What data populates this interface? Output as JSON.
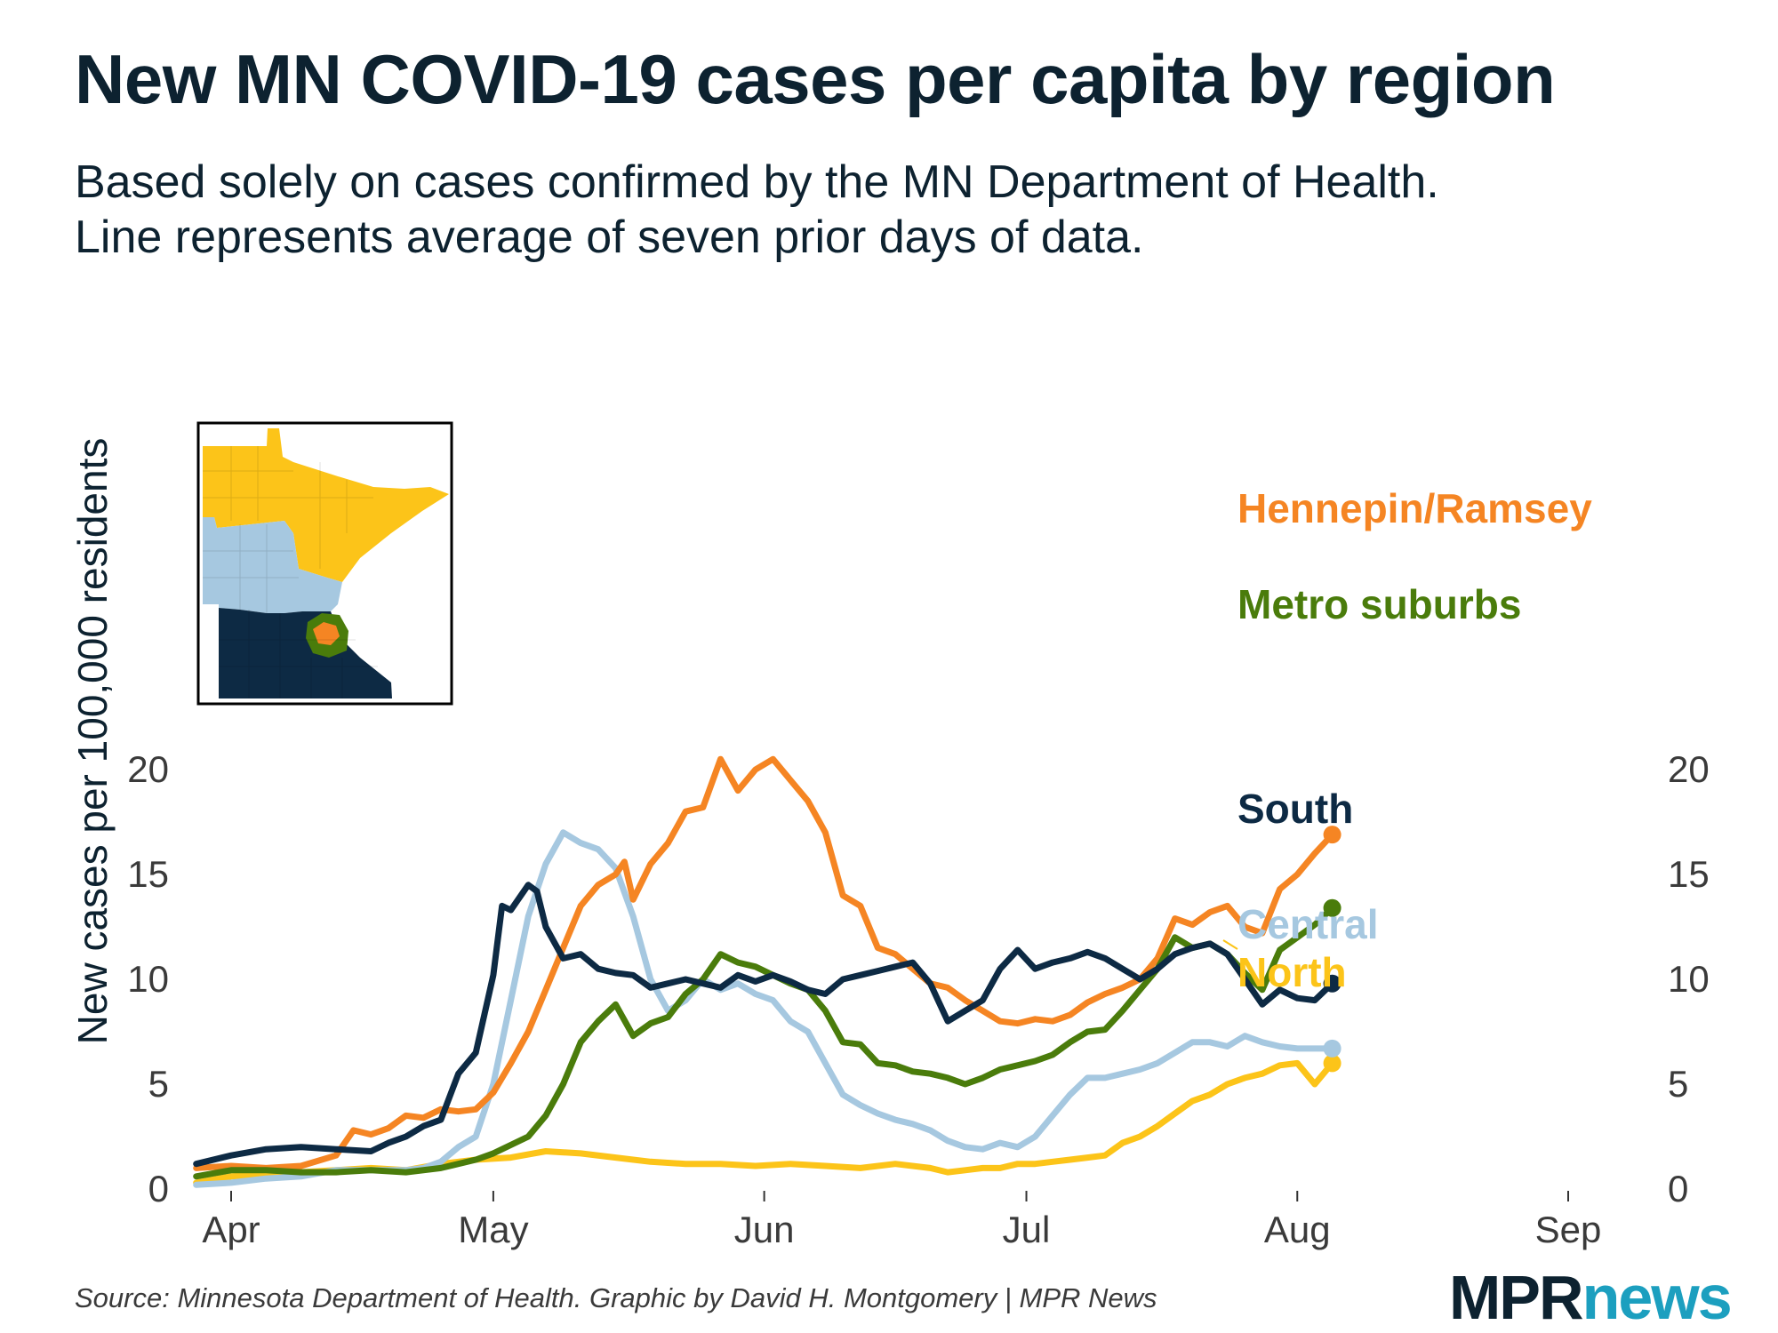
{
  "header": {
    "title": "New MN COVID-19 cases per capita by region",
    "subtitle_line1": "Based solely on cases confirmed by the MN Department of Health.",
    "subtitle_line2": "Line represents average of seven prior days of data."
  },
  "footer": {
    "source": "Source: Minnesota Department of Health. Graphic by David H. Montgomery | MPR News",
    "logo_mpr": "MPR",
    "logo_news": "news"
  },
  "chart_data": {
    "type": "line",
    "title": "New MN COVID-19 cases per capita by region",
    "ylabel": "New cases per 100,000 residents",
    "xlabel": "",
    "ylim": [
      0,
      20
    ],
    "yticks": [
      0,
      5,
      10,
      15,
      20
    ],
    "x_day_range": [
      -2,
      157
    ],
    "x_unit": "days since April 1",
    "xticks": [
      {
        "label": "Apr",
        "day": 0
      },
      {
        "label": "May",
        "day": 30
      },
      {
        "label": "Jun",
        "day": 61
      },
      {
        "label": "Jul",
        "day": 91
      },
      {
        "label": "Aug",
        "day": 122
      },
      {
        "label": "Sep",
        "day": 153
      }
    ],
    "series": [
      {
        "name": "Hennepin/Ramsey",
        "color": "#f58523",
        "points": [
          [
            -4,
            1.0
          ],
          [
            0,
            1.1
          ],
          [
            4,
            1.0
          ],
          [
            8,
            1.1
          ],
          [
            12,
            1.6
          ],
          [
            14,
            2.8
          ],
          [
            16,
            2.6
          ],
          [
            18,
            2.9
          ],
          [
            20,
            3.5
          ],
          [
            22,
            3.4
          ],
          [
            24,
            3.8
          ],
          [
            26,
            3.7
          ],
          [
            28,
            3.8
          ],
          [
            30,
            4.6
          ],
          [
            32,
            6.0
          ],
          [
            34,
            7.5
          ],
          [
            36,
            9.5
          ],
          [
            38,
            11.5
          ],
          [
            40,
            13.5
          ],
          [
            42,
            14.5
          ],
          [
            44,
            15.0
          ],
          [
            45,
            15.6
          ],
          [
            46,
            13.8
          ],
          [
            48,
            15.5
          ],
          [
            50,
            16.5
          ],
          [
            52,
            18.0
          ],
          [
            54,
            18.2
          ],
          [
            56,
            20.5
          ],
          [
            58,
            19.0
          ],
          [
            60,
            20.0
          ],
          [
            62,
            20.5
          ],
          [
            64,
            19.5
          ],
          [
            66,
            18.5
          ],
          [
            68,
            17.0
          ],
          [
            70,
            14.0
          ],
          [
            72,
            13.5
          ],
          [
            74,
            11.5
          ],
          [
            76,
            11.2
          ],
          [
            78,
            10.5
          ],
          [
            80,
            9.8
          ],
          [
            82,
            9.6
          ],
          [
            84,
            9.0
          ],
          [
            86,
            8.5
          ],
          [
            88,
            8.0
          ],
          [
            90,
            7.9
          ],
          [
            92,
            8.1
          ],
          [
            94,
            8.0
          ],
          [
            96,
            8.3
          ],
          [
            98,
            8.9
          ],
          [
            100,
            9.3
          ],
          [
            102,
            9.6
          ],
          [
            104,
            10.0
          ],
          [
            106,
            11.0
          ],
          [
            108,
            12.9
          ],
          [
            110,
            12.6
          ],
          [
            112,
            13.2
          ],
          [
            114,
            13.5
          ],
          [
            116,
            12.5
          ],
          [
            118,
            12.2
          ],
          [
            120,
            14.3
          ],
          [
            122,
            15.0
          ],
          [
            124,
            16.0
          ],
          [
            126,
            16.9
          ]
        ],
        "end_label": "Hennepin/Ramsey"
      },
      {
        "name": "Metro suburbs",
        "color": "#4a7c0b",
        "points": [
          [
            -4,
            0.6
          ],
          [
            0,
            0.9
          ],
          [
            4,
            0.9
          ],
          [
            8,
            0.8
          ],
          [
            12,
            0.8
          ],
          [
            16,
            0.9
          ],
          [
            20,
            0.8
          ],
          [
            24,
            1.0
          ],
          [
            28,
            1.4
          ],
          [
            30,
            1.7
          ],
          [
            34,
            2.5
          ],
          [
            36,
            3.5
          ],
          [
            38,
            5.0
          ],
          [
            40,
            7.0
          ],
          [
            42,
            8.0
          ],
          [
            44,
            8.8
          ],
          [
            46,
            7.3
          ],
          [
            48,
            7.9
          ],
          [
            50,
            8.2
          ],
          [
            52,
            9.3
          ],
          [
            54,
            10.0
          ],
          [
            56,
            11.2
          ],
          [
            58,
            10.8
          ],
          [
            60,
            10.6
          ],
          [
            62,
            10.2
          ],
          [
            64,
            9.8
          ],
          [
            66,
            9.5
          ],
          [
            68,
            8.5
          ],
          [
            70,
            7.0
          ],
          [
            72,
            6.9
          ],
          [
            74,
            6.0
          ],
          [
            76,
            5.9
          ],
          [
            78,
            5.6
          ],
          [
            80,
            5.5
          ],
          [
            82,
            5.3
          ],
          [
            84,
            5.0
          ],
          [
            86,
            5.3
          ],
          [
            88,
            5.7
          ],
          [
            90,
            5.9
          ],
          [
            92,
            6.1
          ],
          [
            94,
            6.4
          ],
          [
            96,
            7.0
          ],
          [
            98,
            7.5
          ],
          [
            100,
            7.6
          ],
          [
            102,
            8.5
          ],
          [
            104,
            9.5
          ],
          [
            106,
            10.5
          ],
          [
            108,
            12.0
          ],
          [
            110,
            11.5
          ],
          [
            112,
            11.7
          ],
          [
            114,
            11.2
          ],
          [
            116,
            10.3
          ],
          [
            118,
            9.5
          ],
          [
            120,
            11.4
          ],
          [
            122,
            12.0
          ],
          [
            124,
            12.6
          ],
          [
            126,
            13.4
          ]
        ],
        "end_label": "Metro suburbs"
      },
      {
        "name": "South",
        "color": "#0d2a44",
        "points": [
          [
            -4,
            1.2
          ],
          [
            0,
            1.6
          ],
          [
            4,
            1.9
          ],
          [
            8,
            2.0
          ],
          [
            12,
            1.9
          ],
          [
            16,
            1.8
          ],
          [
            18,
            2.2
          ],
          [
            20,
            2.5
          ],
          [
            22,
            3.0
          ],
          [
            24,
            3.3
          ],
          [
            26,
            5.5
          ],
          [
            28,
            6.5
          ],
          [
            30,
            10.2
          ],
          [
            31,
            13.5
          ],
          [
            32,
            13.3
          ],
          [
            34,
            14.5
          ],
          [
            35,
            14.2
          ],
          [
            36,
            12.5
          ],
          [
            38,
            11.0
          ],
          [
            40,
            11.2
          ],
          [
            42,
            10.5
          ],
          [
            44,
            10.3
          ],
          [
            46,
            10.2
          ],
          [
            48,
            9.6
          ],
          [
            50,
            9.8
          ],
          [
            52,
            10.0
          ],
          [
            54,
            9.8
          ],
          [
            56,
            9.6
          ],
          [
            58,
            10.2
          ],
          [
            60,
            9.9
          ],
          [
            62,
            10.2
          ],
          [
            64,
            9.9
          ],
          [
            66,
            9.5
          ],
          [
            68,
            9.3
          ],
          [
            70,
            10.0
          ],
          [
            72,
            10.2
          ],
          [
            74,
            10.4
          ],
          [
            76,
            10.6
          ],
          [
            78,
            10.8
          ],
          [
            80,
            9.8
          ],
          [
            82,
            8.0
          ],
          [
            84,
            8.5
          ],
          [
            86,
            9.0
          ],
          [
            88,
            10.5
          ],
          [
            90,
            11.4
          ],
          [
            92,
            10.5
          ],
          [
            94,
            10.8
          ],
          [
            96,
            11.0
          ],
          [
            98,
            11.3
          ],
          [
            100,
            11.0
          ],
          [
            102,
            10.5
          ],
          [
            104,
            10.0
          ],
          [
            106,
            10.5
          ],
          [
            108,
            11.2
          ],
          [
            110,
            11.5
          ],
          [
            112,
            11.7
          ],
          [
            114,
            11.2
          ],
          [
            116,
            10.0
          ],
          [
            118,
            8.8
          ],
          [
            120,
            9.5
          ],
          [
            122,
            9.1
          ],
          [
            124,
            9.0
          ],
          [
            126,
            9.8
          ]
        ],
        "end_label": "South"
      },
      {
        "name": "Central",
        "color": "#a6c8e0",
        "points": [
          [
            -4,
            0.2
          ],
          [
            0,
            0.3
          ],
          [
            4,
            0.5
          ],
          [
            8,
            0.6
          ],
          [
            12,
            0.9
          ],
          [
            16,
            0.9
          ],
          [
            20,
            0.9
          ],
          [
            22,
            1.0
          ],
          [
            24,
            1.3
          ],
          [
            26,
            2.0
          ],
          [
            28,
            2.5
          ],
          [
            30,
            5.0
          ],
          [
            32,
            9.0
          ],
          [
            34,
            13.0
          ],
          [
            36,
            15.5
          ],
          [
            38,
            17.0
          ],
          [
            40,
            16.5
          ],
          [
            42,
            16.2
          ],
          [
            44,
            15.3
          ],
          [
            46,
            13.0
          ],
          [
            48,
            10.0
          ],
          [
            50,
            8.5
          ],
          [
            52,
            9.0
          ],
          [
            54,
            10.0
          ],
          [
            56,
            9.5
          ],
          [
            58,
            9.8
          ],
          [
            60,
            9.3
          ],
          [
            62,
            9.0
          ],
          [
            64,
            8.0
          ],
          [
            66,
            7.5
          ],
          [
            68,
            6.0
          ],
          [
            70,
            4.5
          ],
          [
            72,
            4.0
          ],
          [
            74,
            3.6
          ],
          [
            76,
            3.3
          ],
          [
            78,
            3.1
          ],
          [
            80,
            2.8
          ],
          [
            82,
            2.3
          ],
          [
            84,
            2.0
          ],
          [
            86,
            1.9
          ],
          [
            88,
            2.2
          ],
          [
            90,
            2.0
          ],
          [
            92,
            2.5
          ],
          [
            94,
            3.5
          ],
          [
            96,
            4.5
          ],
          [
            98,
            5.3
          ],
          [
            100,
            5.3
          ],
          [
            102,
            5.5
          ],
          [
            104,
            5.7
          ],
          [
            106,
            6.0
          ],
          [
            108,
            6.5
          ],
          [
            110,
            7.0
          ],
          [
            112,
            7.0
          ],
          [
            114,
            6.8
          ],
          [
            116,
            7.3
          ],
          [
            118,
            7.0
          ],
          [
            120,
            6.8
          ],
          [
            122,
            6.7
          ],
          [
            124,
            6.7
          ],
          [
            126,
            6.7
          ]
        ],
        "end_label": "Central"
      },
      {
        "name": "North",
        "color": "#fcc419",
        "points": [
          [
            -4,
            0.3
          ],
          [
            0,
            0.6
          ],
          [
            4,
            0.7
          ],
          [
            8,
            0.8
          ],
          [
            12,
            0.9
          ],
          [
            16,
            1.0
          ],
          [
            20,
            0.9
          ],
          [
            24,
            1.2
          ],
          [
            28,
            1.4
          ],
          [
            32,
            1.5
          ],
          [
            36,
            1.8
          ],
          [
            40,
            1.7
          ],
          [
            44,
            1.5
          ],
          [
            48,
            1.3
          ],
          [
            52,
            1.2
          ],
          [
            56,
            1.2
          ],
          [
            60,
            1.1
          ],
          [
            64,
            1.2
          ],
          [
            68,
            1.1
          ],
          [
            72,
            1.0
          ],
          [
            76,
            1.2
          ],
          [
            80,
            1.0
          ],
          [
            82,
            0.8
          ],
          [
            84,
            0.9
          ],
          [
            86,
            1.0
          ],
          [
            88,
            1.0
          ],
          [
            90,
            1.2
          ],
          [
            92,
            1.2
          ],
          [
            94,
            1.3
          ],
          [
            96,
            1.4
          ],
          [
            98,
            1.5
          ],
          [
            100,
            1.6
          ],
          [
            102,
            2.2
          ],
          [
            104,
            2.5
          ],
          [
            106,
            3.0
          ],
          [
            108,
            3.6
          ],
          [
            110,
            4.2
          ],
          [
            112,
            4.5
          ],
          [
            114,
            5.0
          ],
          [
            116,
            5.3
          ],
          [
            118,
            5.5
          ],
          [
            120,
            5.9
          ],
          [
            122,
            6.0
          ],
          [
            124,
            5.0
          ],
          [
            126,
            6.0
          ]
        ],
        "end_label": "North"
      }
    ],
    "legend": "direct labels at right end of lines",
    "inset_map": {
      "title": "Minnesota regions map",
      "regions": [
        "North",
        "Central",
        "South",
        "Metro suburbs",
        "Hennepin/Ramsey"
      ]
    }
  }
}
